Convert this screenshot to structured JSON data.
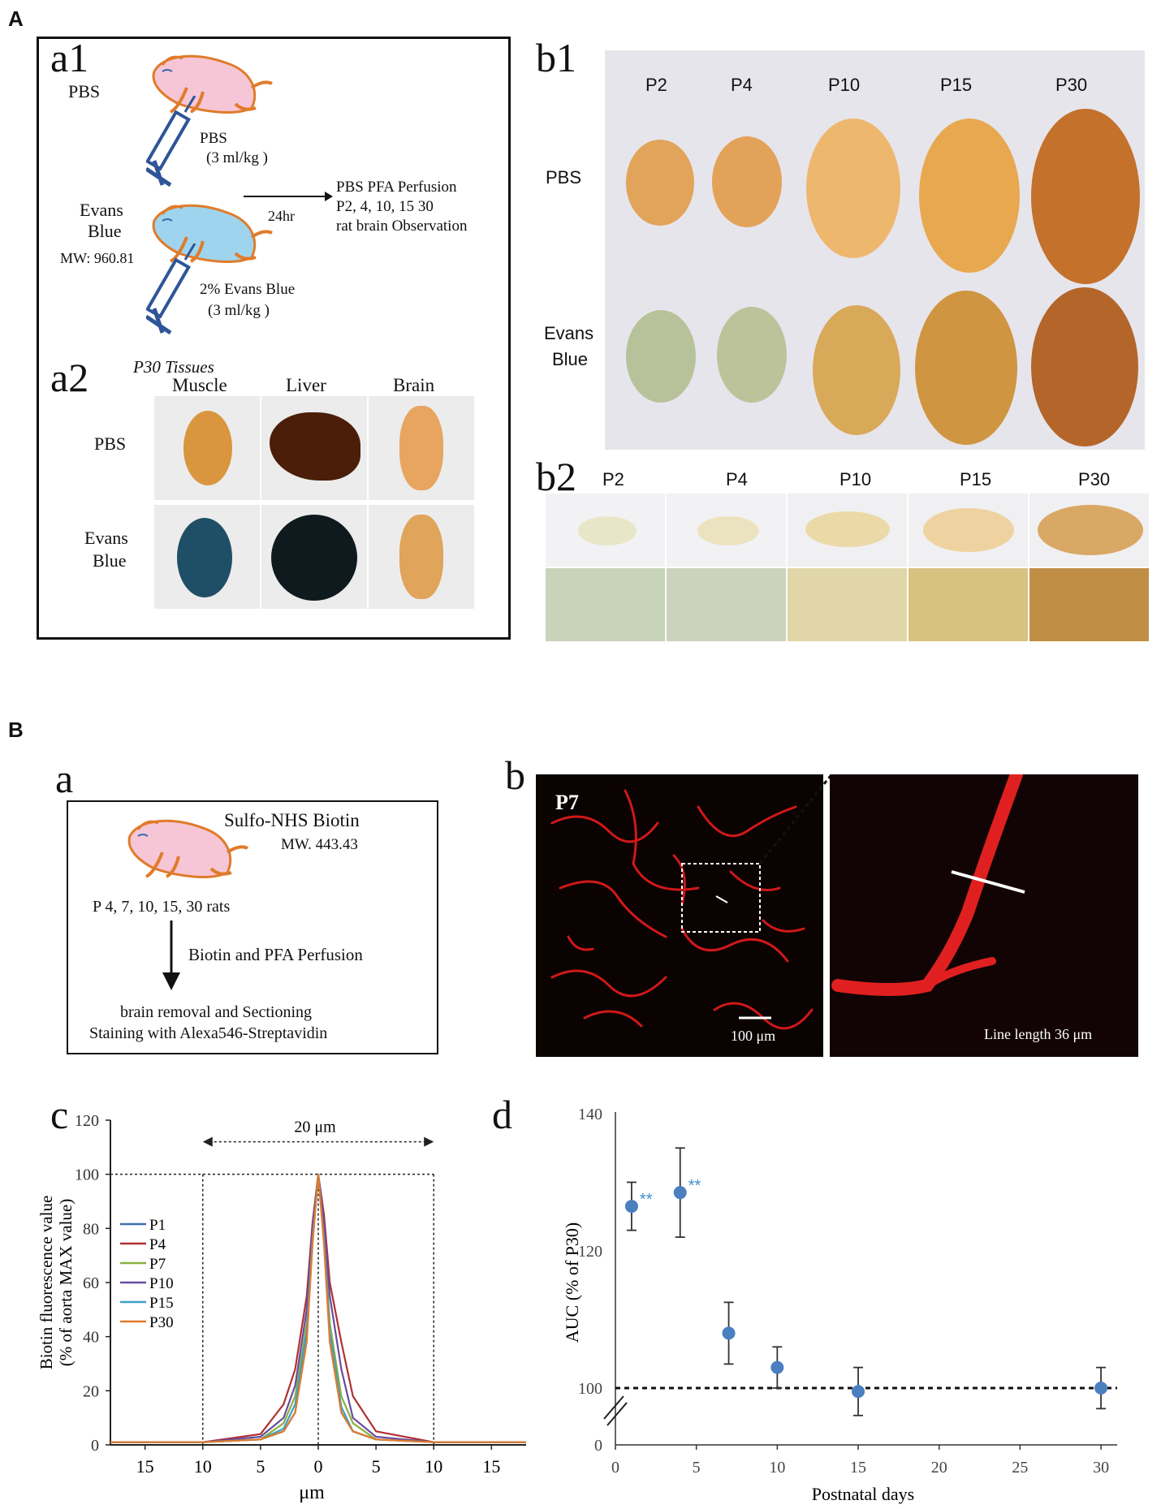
{
  "panels": {
    "A": "A",
    "B": "B",
    "a1": "a1",
    "a2": "a2",
    "b1": "b1",
    "b2": "b2",
    "Ba": "a",
    "Bb": "b",
    "Bc": "c",
    "Bd": "d"
  },
  "a1": {
    "pbs_label": "PBS",
    "evans_label_1": "Evans",
    "evans_label_2": "Blue",
    "mw": "MW: 960.81",
    "pbs_dose_1": "PBS",
    "pbs_dose_2": "(3 ml/kg )",
    "time": "24hr",
    "outcome_1": "PBS PFA Perfusion",
    "outcome_2": "P2, 4, 10, 15 30",
    "outcome_3": "rat brain Observation",
    "evans_dose_1": "2% Evans Blue",
    "evans_dose_2": "(3 ml/kg )"
  },
  "a2": {
    "title": "P30 Tissues",
    "columns": [
      "Muscle",
      "Liver",
      "Brain"
    ],
    "rows": [
      "PBS",
      "Evans",
      "Blue"
    ]
  },
  "b1": {
    "ages": [
      "P2",
      "P4",
      "P10",
      "P15",
      "P30"
    ],
    "row1": "PBS",
    "row2_1": "Evans",
    "row2_2": "Blue"
  },
  "b2": {
    "ages": [
      "P2",
      "P4",
      "P10",
      "P15",
      "P30"
    ]
  },
  "Ba": {
    "reagent": "Sulfo-NHS Biotin",
    "mw": "MW. 443.43",
    "rats": "P 4, 7, 10, 15, 30 rats",
    "step": "Biotin and PFA Perfusion",
    "final_1": "brain removal and Sectioning",
    "final_2": "Staining with Alexa546-Streptavidin"
  },
  "Bb": {
    "age": "P7",
    "scale": "100 μm",
    "line_length": "Line length 36 μm"
  },
  "colors": {
    "P1": "#3e6fb0",
    "P4": "#b03030",
    "P7": "#8ab040",
    "P10": "#6a4ba0",
    "P15": "#3aa0c8",
    "P30": "#e07b2a",
    "auc": "#4a7fc0",
    "stars": "#3a8fd0"
  },
  "chart_data": [
    {
      "type": "line",
      "panel": "c",
      "ylabel_1": "Biotin fluorescence value",
      "ylabel_2": "(% of  aorta MAX value)",
      "xlabel": "μm",
      "xticks": [
        "15",
        "10",
        "5",
        "0",
        "5",
        "10",
        "15"
      ],
      "yticks": [
        "0",
        "20",
        "40",
        "60",
        "80",
        "100",
        "120"
      ],
      "ylim": [
        0,
        120
      ],
      "xlim": [
        -18,
        18
      ],
      "annotation": "20 μm",
      "legend": [
        "P1",
        "P4",
        "P7",
        "P10",
        "P15",
        "P30"
      ],
      "series": [
        {
          "name": "P1",
          "x": [
            -18,
            -10,
            -5,
            -3,
            -2,
            -1,
            -0.5,
            0,
            0.5,
            1,
            2,
            3,
            5,
            10,
            18
          ],
          "y": [
            1,
            1,
            2,
            5,
            12,
            40,
            75,
            100,
            75,
            40,
            12,
            5,
            2,
            1,
            1
          ]
        },
        {
          "name": "P4",
          "x": [
            -18,
            -10,
            -5,
            -3,
            -2,
            -1,
            -0.5,
            0,
            0.5,
            1,
            2,
            3,
            5,
            10,
            18
          ],
          "y": [
            1,
            1,
            4,
            15,
            28,
            55,
            82,
            100,
            85,
            60,
            38,
            18,
            5,
            1,
            1
          ]
        },
        {
          "name": "P7",
          "x": [
            -18,
            -10,
            -5,
            -3,
            -2,
            -1,
            -0.5,
            0,
            0.5,
            1,
            2,
            3,
            5,
            10,
            18
          ],
          "y": [
            1,
            1,
            2,
            8,
            18,
            45,
            78,
            100,
            78,
            45,
            18,
            8,
            2,
            1,
            1
          ]
        },
        {
          "name": "P10",
          "x": [
            -18,
            -10,
            -5,
            -3,
            -2,
            -1,
            -0.5,
            0,
            0.5,
            1,
            2,
            3,
            5,
            10,
            18
          ],
          "y": [
            1,
            1,
            3,
            10,
            22,
            50,
            80,
            100,
            82,
            55,
            28,
            10,
            3,
            1,
            1
          ]
        },
        {
          "name": "P15",
          "x": [
            -18,
            -10,
            -5,
            -3,
            -2,
            -1,
            -0.5,
            0,
            0.5,
            1,
            2,
            3,
            5,
            10,
            18
          ],
          "y": [
            1,
            1,
            2,
            6,
            15,
            42,
            76,
            100,
            76,
            42,
            14,
            5,
            2,
            1,
            1
          ]
        },
        {
          "name": "P30",
          "x": [
            -18,
            -10,
            -5,
            -3,
            -2,
            -1,
            -0.5,
            0,
            0.5,
            1,
            2,
            3,
            5,
            10,
            18
          ],
          "y": [
            1,
            1,
            2,
            5,
            12,
            38,
            74,
            100,
            74,
            38,
            12,
            5,
            2,
            1,
            1
          ]
        }
      ]
    },
    {
      "type": "scatter",
      "panel": "d",
      "ylabel": "AUC (% of  P30)",
      "xlabel": "Postnatal days",
      "xticks": [
        "0",
        "5",
        "10",
        "15",
        "20",
        "25",
        "30"
      ],
      "yticks": [
        "0",
        "100",
        "120",
        "140"
      ],
      "xlim": [
        0,
        31
      ],
      "reference_line": 100,
      "points": [
        {
          "x": 1,
          "y": 126.5,
          "err": 3.5,
          "sig": "**"
        },
        {
          "x": 4,
          "y": 128.5,
          "err": 6.5,
          "sig": "**"
        },
        {
          "x": 7,
          "y": 108,
          "err": 4.5,
          "sig": ""
        },
        {
          "x": 10,
          "y": 103,
          "err": 3,
          "sig": ""
        },
        {
          "x": 15,
          "y": 99.5,
          "err": 3.5,
          "sig": ""
        },
        {
          "x": 30,
          "y": 100,
          "err": 3,
          "sig": ""
        }
      ]
    }
  ]
}
